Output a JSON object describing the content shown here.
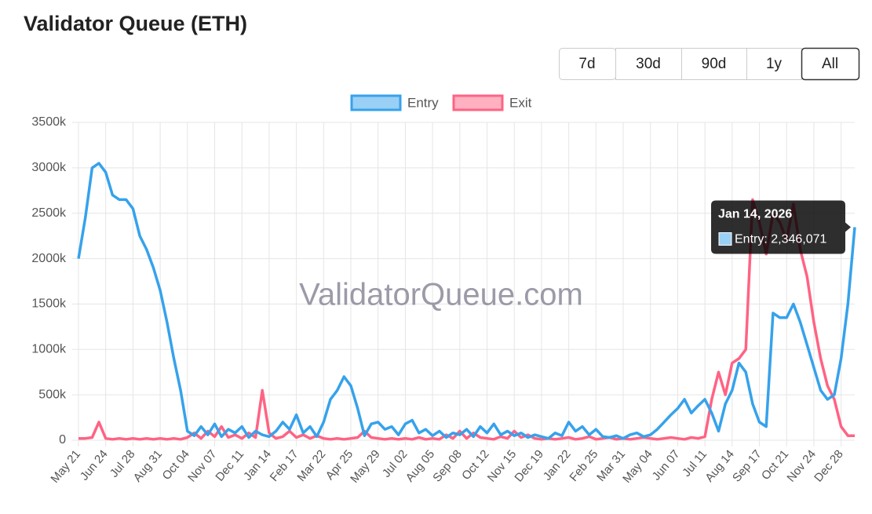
{
  "chart_data": {
    "type": "line",
    "title": "Validator Queue (ETH)",
    "range_buttons": [
      "7d",
      "30d",
      "90d",
      "1y",
      "All"
    ],
    "selected_range": 4,
    "watermark": "ValidatorQueue.com",
    "tooltip": {
      "title": "Jan 14, 2026",
      "label": "Entry: 2,346,071",
      "series": 0,
      "index": 114
    },
    "categories": [
      "May 21",
      null,
      null,
      null,
      "Jun 24",
      null,
      null,
      null,
      "Jul 28",
      null,
      null,
      null,
      "Aug 31",
      null,
      null,
      null,
      "Oct 04",
      null,
      null,
      null,
      "Nov 07",
      null,
      null,
      null,
      "Dec 11",
      null,
      null,
      null,
      "Jan 14",
      null,
      null,
      null,
      "Feb 17",
      null,
      null,
      null,
      "Mar 22",
      null,
      null,
      null,
      "Apr 25",
      null,
      null,
      null,
      "May 29",
      null,
      null,
      null,
      "Jul 02",
      null,
      null,
      null,
      "Aug 05",
      null,
      null,
      null,
      "Sep 08",
      null,
      null,
      null,
      "Oct 12",
      null,
      null,
      null,
      "Nov 15",
      null,
      null,
      null,
      "Dec 19",
      null,
      null,
      null,
      "Jan 22",
      null,
      null,
      null,
      "Feb 25",
      null,
      null,
      null,
      "Mar 31",
      null,
      null,
      null,
      "May 04",
      null,
      null,
      null,
      "Jun 07",
      null,
      null,
      null,
      "Jul 11",
      null,
      null,
      null,
      "Aug 14",
      null,
      null,
      null,
      "Sep 17",
      null,
      null,
      null,
      "Oct 21",
      null,
      null,
      null,
      "Nov 24",
      null,
      null,
      null,
      "Dec 28",
      null,
      null
    ],
    "series": [
      {
        "name": "Entry",
        "color": "#36a2eb",
        "fill": "#9ad0f5",
        "values": [
          2000000,
          2450000,
          3000000,
          3050000,
          2950000,
          2700000,
          2650000,
          2650000,
          2550000,
          2250000,
          2100000,
          1900000,
          1650000,
          1300000,
          900000,
          550000,
          100000,
          50000,
          150000,
          60000,
          180000,
          40000,
          120000,
          80000,
          150000,
          30000,
          100000,
          60000,
          40000,
          100000,
          200000,
          120000,
          280000,
          80000,
          150000,
          40000,
          200000,
          450000,
          550000,
          700000,
          600000,
          350000,
          50000,
          180000,
          200000,
          120000,
          150000,
          60000,
          180000,
          220000,
          80000,
          120000,
          50000,
          100000,
          30000,
          80000,
          60000,
          120000,
          40000,
          150000,
          80000,
          180000,
          60000,
          100000,
          50000,
          80000,
          30000,
          60000,
          40000,
          20000,
          80000,
          50000,
          200000,
          100000,
          150000,
          60000,
          120000,
          40000,
          30000,
          50000,
          20000,
          60000,
          80000,
          40000,
          60000,
          120000,
          200000,
          280000,
          350000,
          450000,
          300000,
          380000,
          450000,
          300000,
          100000,
          400000,
          550000,
          850000,
          750000,
          400000,
          200000,
          150000,
          1400000,
          1350000,
          1350000,
          1500000,
          1300000,
          1050000,
          800000,
          550000,
          450000,
          500000,
          900000,
          1500000,
          2346071
        ]
      },
      {
        "name": "Exit",
        "color": "#ff6384",
        "fill": "#ffb1c1",
        "values": [
          20000,
          20000,
          30000,
          200000,
          20000,
          10000,
          20000,
          10000,
          20000,
          10000,
          20000,
          10000,
          20000,
          10000,
          20000,
          10000,
          30000,
          80000,
          20000,
          100000,
          40000,
          150000,
          30000,
          60000,
          20000,
          80000,
          30000,
          550000,
          80000,
          20000,
          40000,
          100000,
          30000,
          60000,
          20000,
          50000,
          20000,
          10000,
          20000,
          10000,
          20000,
          30000,
          100000,
          30000,
          20000,
          10000,
          20000,
          10000,
          20000,
          10000,
          30000,
          10000,
          20000,
          10000,
          60000,
          20000,
          100000,
          20000,
          80000,
          30000,
          20000,
          10000,
          40000,
          20000,
          100000,
          30000,
          60000,
          20000,
          10000,
          20000,
          10000,
          20000,
          30000,
          10000,
          20000,
          40000,
          10000,
          20000,
          30000,
          10000,
          20000,
          10000,
          20000,
          30000,
          20000,
          10000,
          20000,
          30000,
          20000,
          10000,
          30000,
          20000,
          40000,
          450000,
          750000,
          500000,
          850000,
          900000,
          1000000,
          2650000,
          2400000,
          2050000,
          2500000,
          2400000,
          2200000,
          2600000,
          2100000,
          1800000,
          1300000,
          900000,
          600000,
          450000,
          150000,
          50000,
          50000
        ]
      }
    ],
    "ylim": [
      0,
      3500000
    ],
    "yticks": [
      0,
      {
        "value": 500000,
        "label": "500k"
      },
      {
        "value": 1000000,
        "label": "1000k"
      },
      {
        "value": 1500000,
        "label": "1500k"
      },
      {
        "value": 2000000,
        "label": "2000k"
      },
      {
        "value": 2500000,
        "label": "2500k"
      },
      {
        "value": 3000000,
        "label": "3000k"
      },
      {
        "value": 3500000,
        "label": "3500k"
      }
    ],
    "grid": true,
    "legend": "top"
  }
}
